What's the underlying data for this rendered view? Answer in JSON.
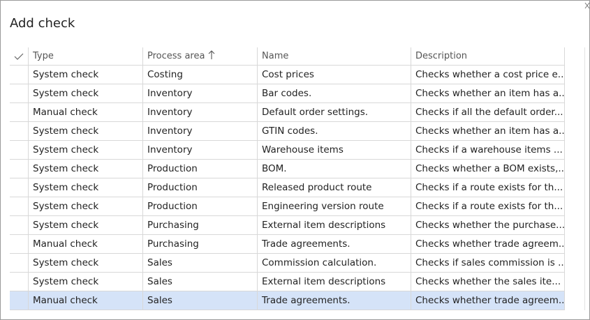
{
  "header": {
    "title": "Add check"
  },
  "table": {
    "columns": [
      "Type",
      "Process area",
      "Name",
      "Description"
    ],
    "rows": [
      [
        "System check",
        "Costing",
        "Cost prices",
        "Checks whether a cost price e..."
      ],
      [
        "System check",
        "Inventory",
        "Bar codes.",
        "Checks whether an item has a..."
      ],
      [
        "Manual check",
        "Inventory",
        "Default order settings.",
        "Checks if all the default order..."
      ],
      [
        "System check",
        "Inventory",
        "GTIN codes.",
        "Checks whether an item has a..."
      ],
      [
        "System check",
        "Inventory",
        "Warehouse items",
        "Checks if a warehouse items ..."
      ],
      [
        "System check",
        "Production",
        "BOM.",
        "Checks whether a BOM exists,..."
      ],
      [
        "System check",
        "Production",
        "Released product route",
        "Checks if a route exists for th..."
      ],
      [
        "System check",
        "Production",
        "Engineering version route",
        "Checks if a route exists for th..."
      ],
      [
        "System check",
        "Purchasing",
        "External item descriptions",
        "Checks whether the purchase..."
      ],
      [
        "Manual check",
        "Purchasing",
        "Trade agreements.",
        "Checks whether trade agreem..."
      ],
      [
        "System check",
        "Sales",
        "Commission calculation.",
        "Checks if sales commission is ..."
      ],
      [
        "System check",
        "Sales",
        "External item descriptions",
        "Checks whether the sales ite..."
      ],
      [
        "Manual check",
        "Sales",
        "Trade agreements.",
        "Checks whether trade agreem..."
      ]
    ]
  }
}
